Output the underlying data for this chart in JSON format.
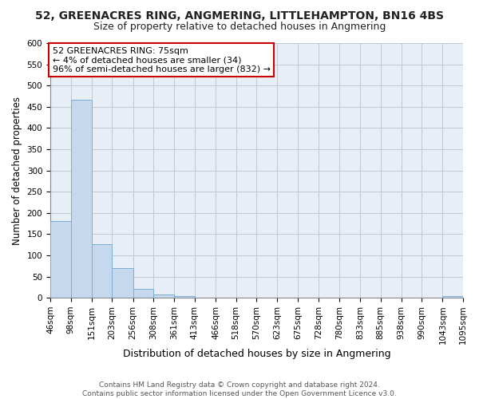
{
  "title": "52, GREENACRES RING, ANGMERING, LITTLEHAMPTON, BN16 4BS",
  "subtitle": "Size of property relative to detached houses in Angmering",
  "xlabel": "Distribution of detached houses by size in Angmering",
  "ylabel": "Number of detached properties",
  "bar_values": [
    181,
    467,
    127,
    70,
    20,
    8,
    4,
    0,
    0,
    0,
    0,
    0,
    0,
    0,
    0,
    0,
    0,
    0,
    0,
    4
  ],
  "bin_edges": [
    46,
    98,
    151,
    203,
    256,
    308,
    361,
    413,
    466,
    518,
    570,
    623,
    675,
    728,
    780,
    833,
    885,
    938,
    990,
    1043,
    1095
  ],
  "tick_labels": [
    "46sqm",
    "98sqm",
    "151sqm",
    "203sqm",
    "256sqm",
    "308sqm",
    "361sqm",
    "413sqm",
    "466sqm",
    "518sqm",
    "570sqm",
    "623sqm",
    "675sqm",
    "728sqm",
    "780sqm",
    "833sqm",
    "885sqm",
    "938sqm",
    "990sqm",
    "1043sqm",
    "1095sqm"
  ],
  "bar_color": "#c5d8ee",
  "bar_edge_color": "#7aadd4",
  "annotation_box_text": "52 GREENACRES RING: 75sqm\n← 4% of detached houses are smaller (34)\n96% of semi-detached houses are larger (832) →",
  "annotation_box_color": "#ffffff",
  "annotation_box_edgecolor": "#cc0000",
  "ylim": [
    0,
    600
  ],
  "yticks": [
    0,
    50,
    100,
    150,
    200,
    250,
    300,
    350,
    400,
    450,
    500,
    550,
    600
  ],
  "background_color": "#ffffff",
  "axes_facecolor": "#e8eef5",
  "grid_color": "#c0c8d0",
  "footer_text": "Contains HM Land Registry data © Crown copyright and database right 2024.\nContains public sector information licensed under the Open Government Licence v3.0.",
  "title_fontsize": 10,
  "subtitle_fontsize": 9,
  "xlabel_fontsize": 9,
  "ylabel_fontsize": 8.5,
  "tick_fontsize": 7.5,
  "footer_fontsize": 6.5
}
